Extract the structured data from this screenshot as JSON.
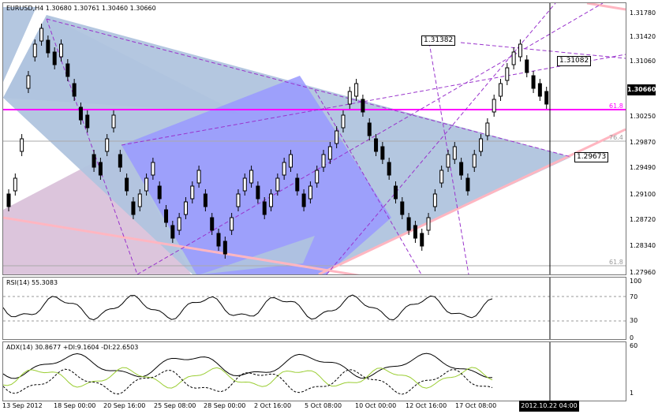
{
  "chart": {
    "symbol_header": "EURUSD,H4  1.30680 1.30761 1.30460 1.30660",
    "current_price": "1.30660",
    "price_axis": [
      "1.31780",
      "1.31420",
      "1.31060",
      "1.30660",
      "1.30250",
      "1.29870",
      "1.29490",
      "1.29100",
      "1.28720",
      "1.28340",
      "1.27960"
    ],
    "fib_labels": {
      "fib_618_top": "61.8",
      "fib_764": "76.4",
      "fib_618_bottom": "61.8"
    },
    "annotations": {
      "high": "1.31382",
      "mid": "1.31082",
      "low": "1.29673"
    },
    "colors": {
      "magenta_line": "#ff00ff",
      "triangle_grey_blue": "#b0c4de",
      "triangle_purple": "#9999ff",
      "triangle_pink": "#d8bfd8",
      "trend_line": "#ffb6c1",
      "dashed_purple": "#9933cc",
      "candle": "#000000"
    }
  },
  "rsi": {
    "header": "RSI(14) 55.3083",
    "axis": [
      "100",
      "70",
      "30",
      "0"
    ]
  },
  "adx": {
    "header": "ADX(14) 30.8677 +DI:9.1604 -DI:22.6503",
    "axis": [
      "60",
      "1"
    ],
    "colors": {
      "adx": "#000000",
      "plus_di": "#9acd32",
      "minus_di": "#000000"
    }
  },
  "time_axis": [
    "13 Sep 2012",
    "18 Sep 00:00",
    "20 Sep 16:00",
    "25 Sep 08:00",
    "28 Sep 00:00",
    "2 Oct 16:00",
    "5 Oct 08:00",
    "10 Oct 00:00",
    "12 Oct 16:00",
    "17 Oct 08:00"
  ],
  "crosshair_time": "2012.10.22 04:00"
}
